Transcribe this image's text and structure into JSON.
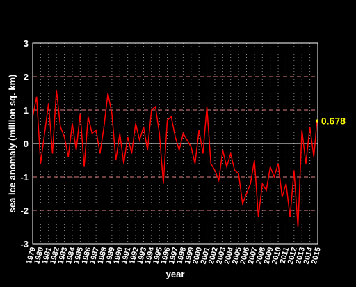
{
  "chart_data": {
    "type": "line",
    "x_label": "year",
    "y_label": "sea ice anomaly (million sq. km)",
    "xlim": [
      1979,
      2015
    ],
    "ylim": [
      -3,
      3
    ],
    "xticks": [
      1979,
      1980,
      1981,
      1982,
      1983,
      1984,
      1985,
      1986,
      1987,
      1988,
      1989,
      1990,
      1991,
      1992,
      1993,
      1994,
      1995,
      1996,
      1997,
      1998,
      1999,
      2000,
      2001,
      2002,
      2003,
      2004,
      2005,
      2006,
      2007,
      2008,
      2009,
      2010,
      2011,
      2012,
      2013,
      2014,
      2015
    ],
    "yticks": [
      -3,
      -2,
      -1,
      0,
      1,
      2,
      3
    ],
    "grid": true,
    "series": [
      {
        "color": "#ff0000",
        "x": [
          1979.0,
          1979.5,
          1980.0,
          1980.5,
          1981.0,
          1981.5,
          1982.0,
          1982.5,
          1983.0,
          1983.5,
          1984.0,
          1984.5,
          1985.0,
          1985.5,
          1986.0,
          1986.5,
          1987.0,
          1987.5,
          1988.0,
          1988.5,
          1989.0,
          1989.5,
          1990.0,
          1990.5,
          1991.0,
          1991.5,
          1992.0,
          1992.5,
          1993.0,
          1993.5,
          1994.0,
          1994.5,
          1995.0,
          1995.5,
          1996.0,
          1996.5,
          1997.0,
          1997.5,
          1998.0,
          1998.5,
          1999.0,
          1999.5,
          2000.0,
          2000.5,
          2001.0,
          2001.5,
          2002.0,
          2002.5,
          2003.0,
          2003.5,
          2004.0,
          2004.5,
          2005.0,
          2005.5,
          2006.0,
          2006.5,
          2007.0,
          2007.5,
          2008.0,
          2008.5,
          2009.0,
          2009.5,
          2010.0,
          2010.5,
          2011.0,
          2011.5,
          2012.0,
          2012.5,
          2013.0,
          2013.5,
          2014.0,
          2014.5,
          2014.9
        ],
        "values": [
          0.8,
          1.4,
          -0.6,
          0.3,
          1.2,
          -0.3,
          1.6,
          0.5,
          0.2,
          -0.4,
          0.6,
          -0.2,
          0.9,
          -0.7,
          0.8,
          0.3,
          0.4,
          -0.3,
          0.5,
          1.5,
          0.9,
          -0.5,
          0.3,
          -0.6,
          0.2,
          -0.3,
          0.6,
          0.1,
          0.5,
          -0.2,
          1.0,
          1.1,
          0.3,
          -1.2,
          0.7,
          0.8,
          0.2,
          -0.2,
          0.3,
          0.1,
          -0.1,
          -0.6,
          0.4,
          -0.3,
          1.1,
          -0.6,
          -0.8,
          -1.1,
          -0.2,
          -0.7,
          -0.3,
          -0.8,
          -0.9,
          -1.8,
          -1.5,
          -1.2,
          -0.5,
          -2.2,
          -1.2,
          -1.4,
          -0.7,
          -1.0,
          -0.6,
          -1.6,
          -1.2,
          -2.2,
          -0.8,
          -2.5,
          0.4,
          -0.6,
          0.5,
          -0.4,
          0.678
        ]
      }
    ],
    "annotation": {
      "x": 2014.9,
      "y": 0.678,
      "color": "#ffff00"
    }
  }
}
